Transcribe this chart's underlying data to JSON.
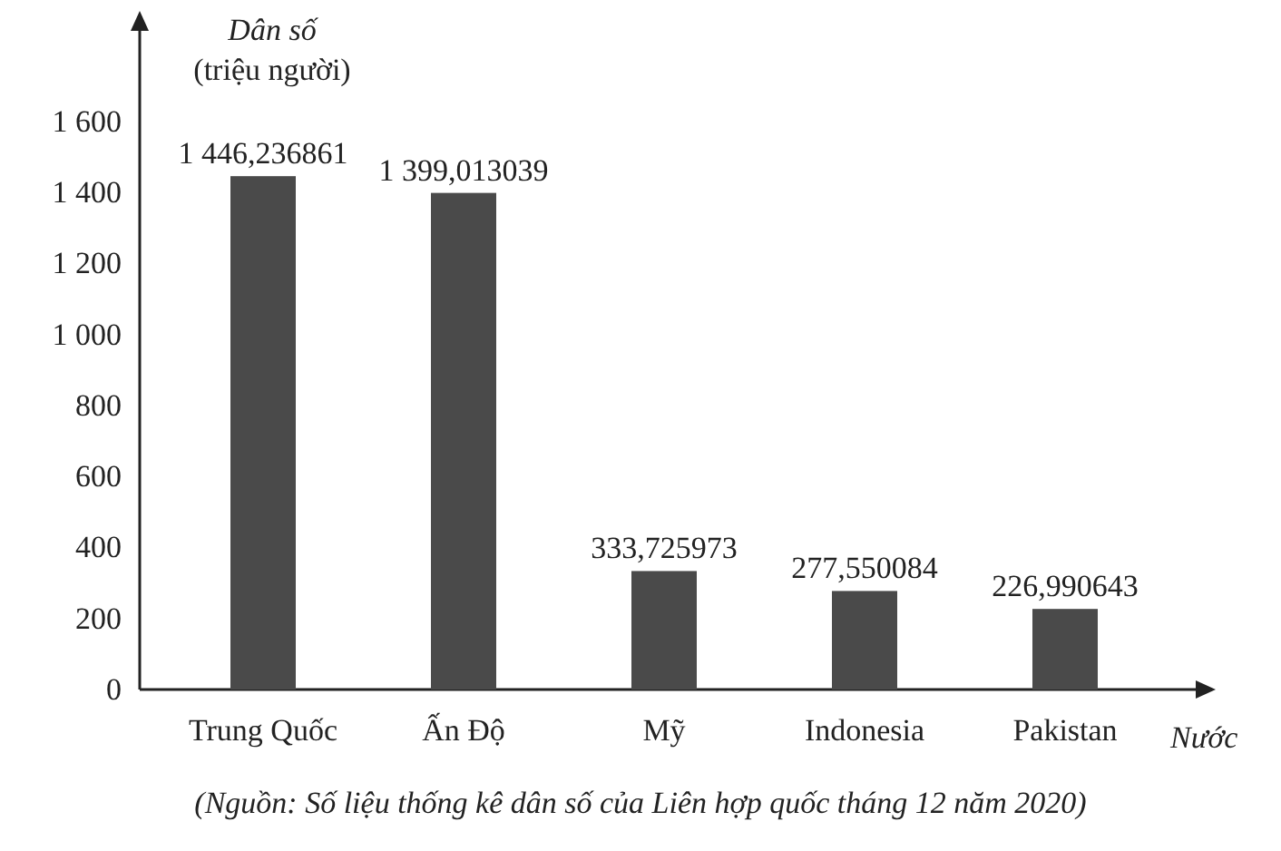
{
  "chart_data": {
    "type": "bar",
    "ylabel": "Dân số\n(triệu người)",
    "xlabel": "Nước",
    "categories": [
      "Trung Quốc",
      "Ấn Độ",
      "Mỹ",
      "Indonesia",
      "Pakistan"
    ],
    "values": [
      1446.236861,
      1399.013039,
      333.725973,
      277.550084,
      226.990643
    ],
    "value_labels": [
      "1 446,236861",
      "1 399,013039",
      "333,725973",
      "277,550084",
      "226,990643"
    ],
    "color": "#4a4a4a",
    "ylim": [
      0,
      1600
    ],
    "yticks": [
      0,
      200,
      400,
      600,
      800,
      {
        "value": 1000,
        "label": "1 000"
      },
      {
        "value": 1200,
        "label": "1 200"
      },
      {
        "value": 1400,
        "label": "1 400"
      },
      {
        "value": 1600,
        "label": "1 600"
      }
    ],
    "grid": false,
    "annotations": [
      "(Nguồn: Số liệu thống kê dân số của Liên hợp quốc tháng 12 năm 2020)"
    ]
  }
}
